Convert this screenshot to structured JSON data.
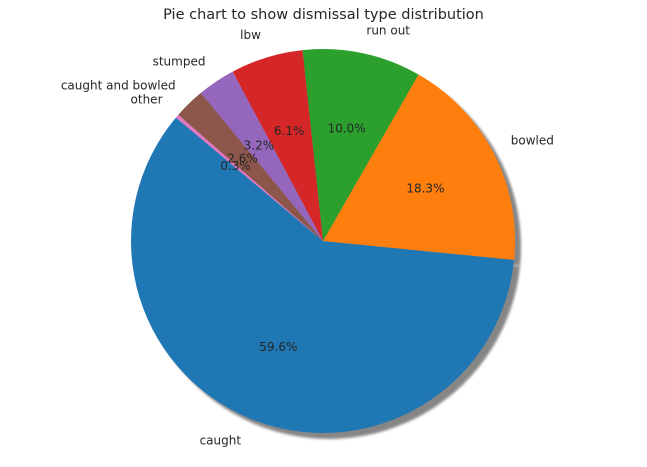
{
  "chart_data": {
    "type": "pie",
    "title": "Pie chart to show dismissal type distribution",
    "start_angle_deg": 140,
    "direction": "counterclockwise",
    "shadow": true,
    "slices": [
      {
        "label": "caught",
        "value": 59.6,
        "pct_label": "59.6%",
        "color": "#1f77b4"
      },
      {
        "label": "bowled",
        "value": 18.3,
        "pct_label": "18.3%",
        "color": "#ff7f0e"
      },
      {
        "label": "run out",
        "value": 10.0,
        "pct_label": "10.0%",
        "color": "#2ca02c"
      },
      {
        "label": "lbw",
        "value": 6.1,
        "pct_label": "6.1%",
        "color": "#d62728"
      },
      {
        "label": "stumped",
        "value": 3.2,
        "pct_label": "3.2%",
        "color": "#9467bd"
      },
      {
        "label": "caught and bowled",
        "value": 2.6,
        "pct_label": "2.6%",
        "color": "#8c564b"
      },
      {
        "label": "other",
        "value": 0.3,
        "pct_label": "0.3%",
        "color": "#e377c2"
      }
    ]
  }
}
